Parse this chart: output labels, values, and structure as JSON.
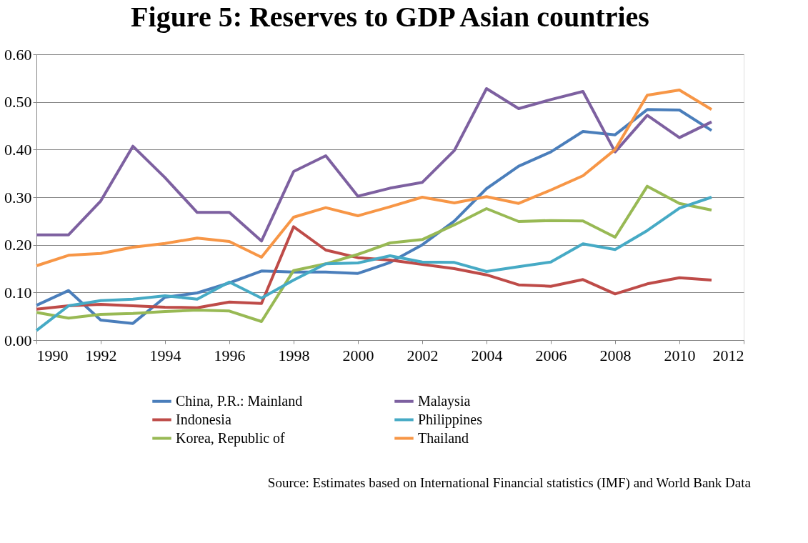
{
  "chart_data": {
    "type": "line",
    "title": "Figure 5: Reserves to GDP Asian countries",
    "x": [
      1990,
      1991,
      1992,
      1993,
      1994,
      1995,
      1996,
      1997,
      1998,
      1999,
      2000,
      2001,
      2002,
      2003,
      2004,
      2005,
      2006,
      2007,
      2008,
      2009,
      2010,
      2011
    ],
    "series": [
      {
        "name": "China, P.R.: Mainland",
        "color": "#4a7ebb",
        "values": [
          0.073,
          0.104,
          0.042,
          0.035,
          0.09,
          0.099,
          0.12,
          0.145,
          0.143,
          0.143,
          0.14,
          0.163,
          0.2,
          0.25,
          0.318,
          0.365,
          0.395,
          0.438,
          0.431,
          0.484,
          0.483,
          0.44
        ]
      },
      {
        "name": "Indonesia",
        "color": "#be4b48",
        "values": [
          0.065,
          0.072,
          0.075,
          0.072,
          0.069,
          0.068,
          0.08,
          0.077,
          0.238,
          0.189,
          0.173,
          0.168,
          0.159,
          0.15,
          0.137,
          0.116,
          0.113,
          0.127,
          0.097,
          0.118,
          0.131,
          0.126
        ]
      },
      {
        "name": "Korea, Republic of",
        "color": "#98b954",
        "values": [
          0.058,
          0.046,
          0.054,
          0.056,
          0.06,
          0.063,
          0.061,
          0.039,
          0.146,
          0.16,
          0.18,
          0.204,
          0.211,
          0.242,
          0.276,
          0.249,
          0.251,
          0.25,
          0.216,
          0.323,
          0.287,
          0.273
        ]
      },
      {
        "name": "Malaysia",
        "color": "#7d60a0",
        "values": [
          0.221,
          0.221,
          0.292,
          0.407,
          0.341,
          0.268,
          0.268,
          0.208,
          0.354,
          0.387,
          0.302,
          0.319,
          0.331,
          0.398,
          0.528,
          0.486,
          0.505,
          0.522,
          0.395,
          0.472,
          0.425,
          0.458
        ]
      },
      {
        "name": "Philippines",
        "color": "#46aac5",
        "values": [
          0.02,
          0.072,
          0.083,
          0.086,
          0.093,
          0.086,
          0.122,
          0.088,
          0.126,
          0.16,
          0.162,
          0.177,
          0.164,
          0.163,
          0.144,
          0.154,
          0.164,
          0.202,
          0.19,
          0.23,
          0.277,
          0.3
        ]
      },
      {
        "name": "Thailand",
        "color": "#f79646",
        "values": [
          0.156,
          0.178,
          0.182,
          0.195,
          0.203,
          0.214,
          0.207,
          0.174,
          0.258,
          0.278,
          0.261,
          0.28,
          0.3,
          0.288,
          0.301,
          0.287,
          0.315,
          0.345,
          0.4,
          0.514,
          0.525,
          0.484
        ]
      }
    ],
    "xlim": [
      1990,
      2012
    ],
    "xticks": [
      1990,
      1992,
      1994,
      1996,
      1998,
      2000,
      2002,
      2004,
      2006,
      2008,
      2010,
      2012
    ],
    "ylim": [
      0,
      0.6
    ],
    "yticks": [
      {
        "value": 0,
        "label": "0.00"
      },
      {
        "value": 0.1,
        "label": "0.10"
      },
      {
        "value": 0.2,
        "label": "0.20"
      },
      {
        "value": 0.3,
        "label": "0.30"
      },
      {
        "value": 0.4,
        "label": "0.40"
      },
      {
        "value": 0.5,
        "label": "0.50"
      },
      {
        "value": 0.6,
        "label": "0.60"
      }
    ],
    "grid": "y",
    "legend": "bottom",
    "marker": "none",
    "line_style": "solid",
    "annotations": [
      "Source: Estimates based on International Financial statistics (IMF) and World Bank Data"
    ]
  }
}
